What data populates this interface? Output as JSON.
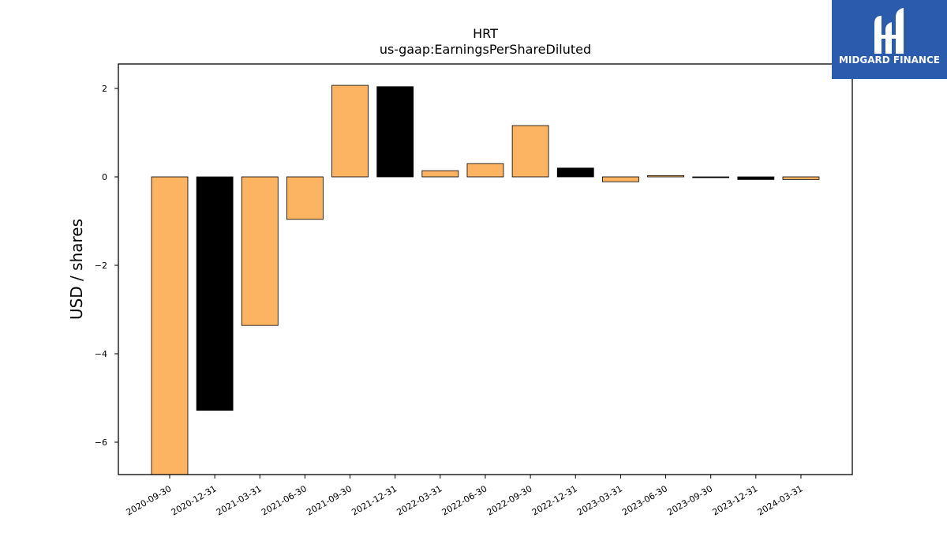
{
  "chart_data": {
    "type": "bar",
    "title": "HRT",
    "subtitle": "us-gaap:EarningsPerShareDiluted",
    "xlabel": "",
    "ylabel": "USD / shares",
    "categories": [
      "2020-09-30",
      "2020-12-31",
      "2021-03-31",
      "2021-06-30",
      "2021-09-30",
      "2021-12-31",
      "2022-03-31",
      "2022-06-30",
      "2022-09-30",
      "2022-12-31",
      "2023-03-31",
      "2023-06-30",
      "2023-09-30",
      "2023-12-31",
      "2024-03-31"
    ],
    "values": [
      -6.75,
      -5.28,
      -3.36,
      -0.96,
      2.07,
      2.04,
      0.14,
      0.3,
      1.16,
      0.2,
      -0.11,
      0.03,
      -0.01,
      -0.06,
      -0.06
    ],
    "bar_colors": [
      "#fdb462",
      "#000000",
      "#fdb462",
      "#fdb462",
      "#fdb462",
      "#000000",
      "#fdb462",
      "#fdb462",
      "#fdb462",
      "#000000",
      "#fdb462",
      "#fdb462",
      "#000000",
      "#000000",
      "#fdb462"
    ],
    "yticks": [
      2,
      0,
      -2,
      -4,
      -6
    ],
    "ytick_labels": [
      "2",
      "0",
      "−2",
      "−4",
      "−6"
    ],
    "ylim": [
      -6.75,
      2.55
    ],
    "grid": false,
    "legend": "none"
  },
  "logo": {
    "text": "MIDGARD FINANCE",
    "background": "#2a5bad"
  }
}
